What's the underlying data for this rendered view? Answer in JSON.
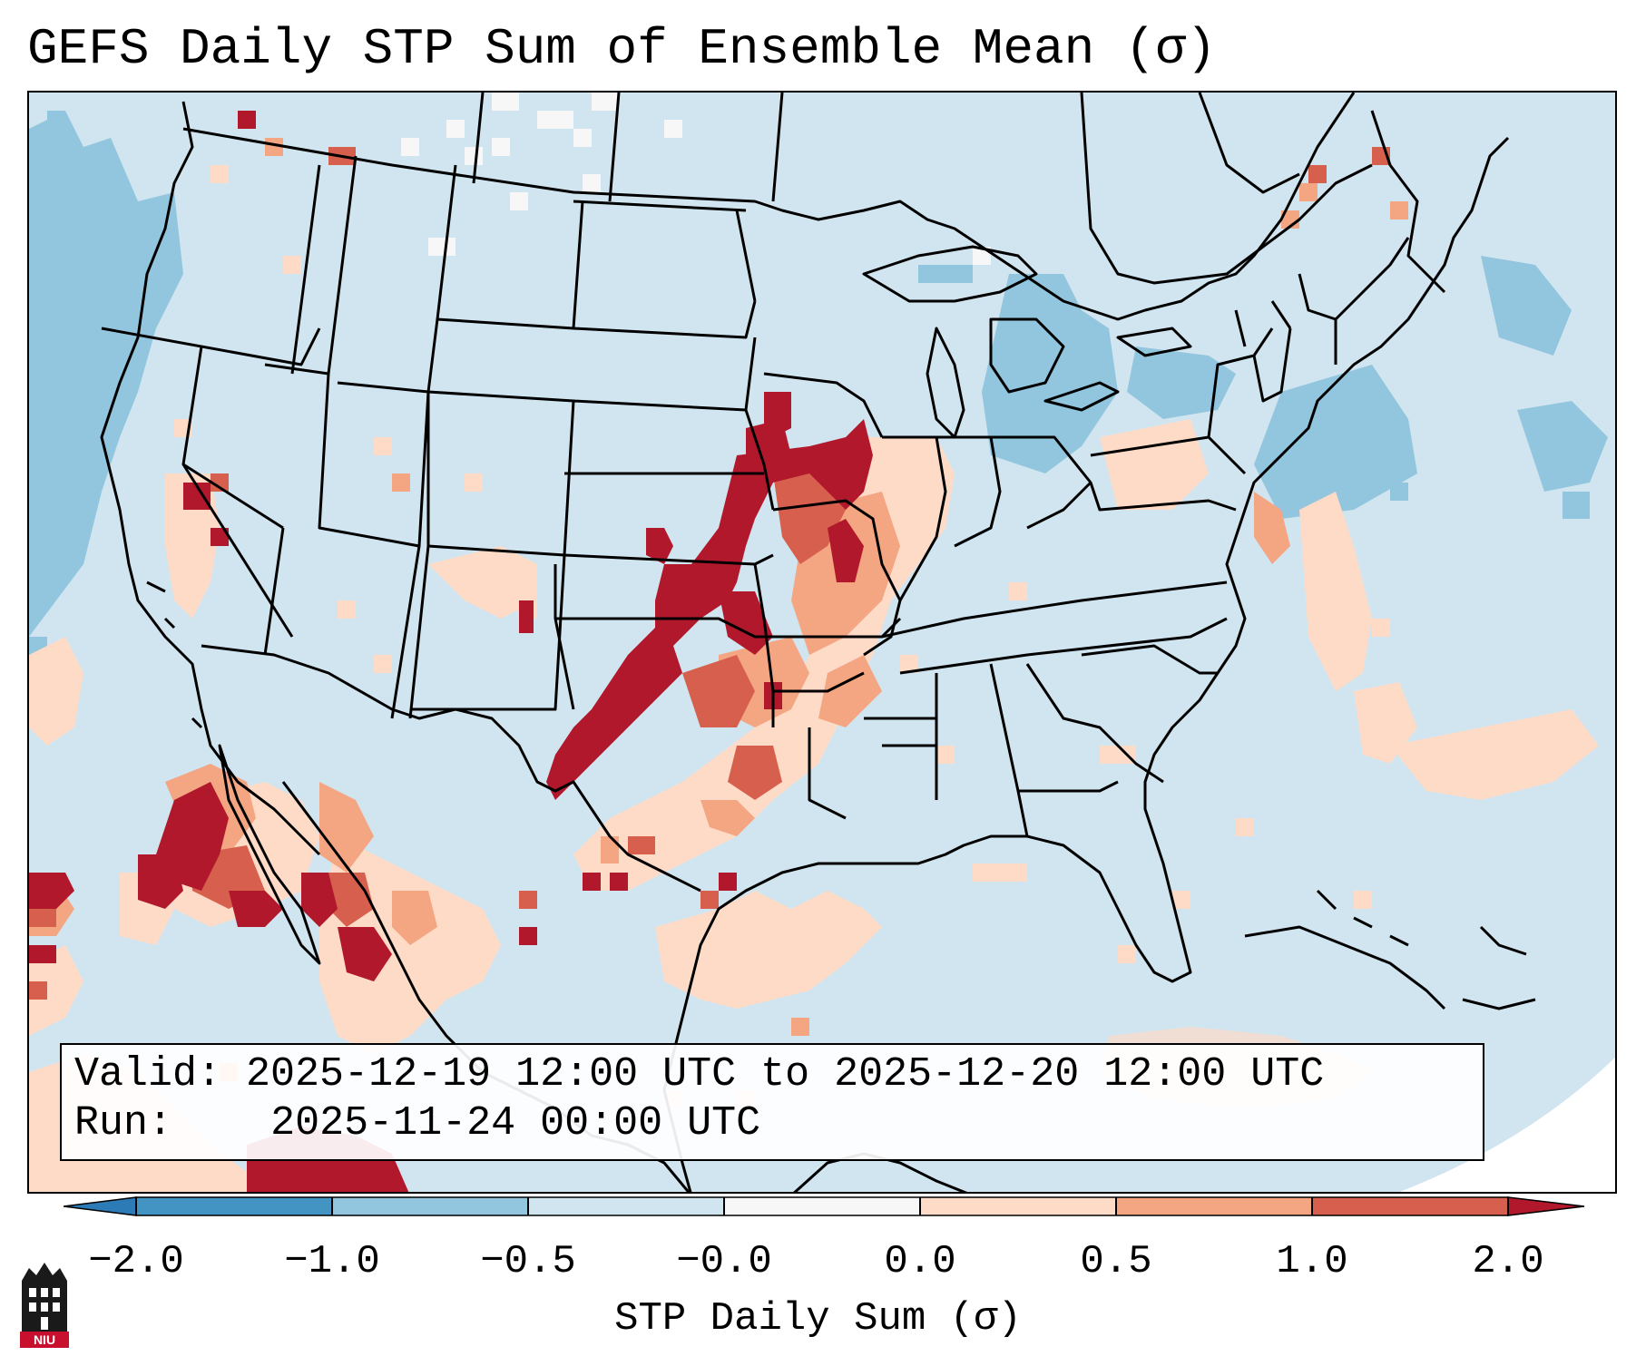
{
  "title": "GEFS Daily STP Sum of Ensemble Mean (σ)",
  "info": {
    "valid_label": "Valid:",
    "valid_value": "2025-12-19 12:00 UTC to 2025-12-20 12:00 UTC",
    "run_label": "Run:",
    "run_value": "2025-11-24 00:00 UTC"
  },
  "colorbar": {
    "label": "STP Daily Sum (σ)",
    "ticks": [
      "−2.0",
      "−1.0",
      "−0.5",
      "−0.0",
      "0.0",
      "0.5",
      "1.0",
      "2.0"
    ],
    "colors": {
      "below_min": "#2c7bb6",
      "bin_-2_-1": "#4393c3",
      "bin_-1_-0.5": "#92c5de",
      "bin_-0.5_0": "#d1e5f0",
      "bin_zero": "#f7f7f7",
      "bin_0_0.5": "#fddbc7",
      "bin_0.5_1": "#f4a582",
      "bin_1_2": "#d6604d",
      "above_max": "#b2182b"
    }
  },
  "logo": {
    "text": "NIU"
  }
}
